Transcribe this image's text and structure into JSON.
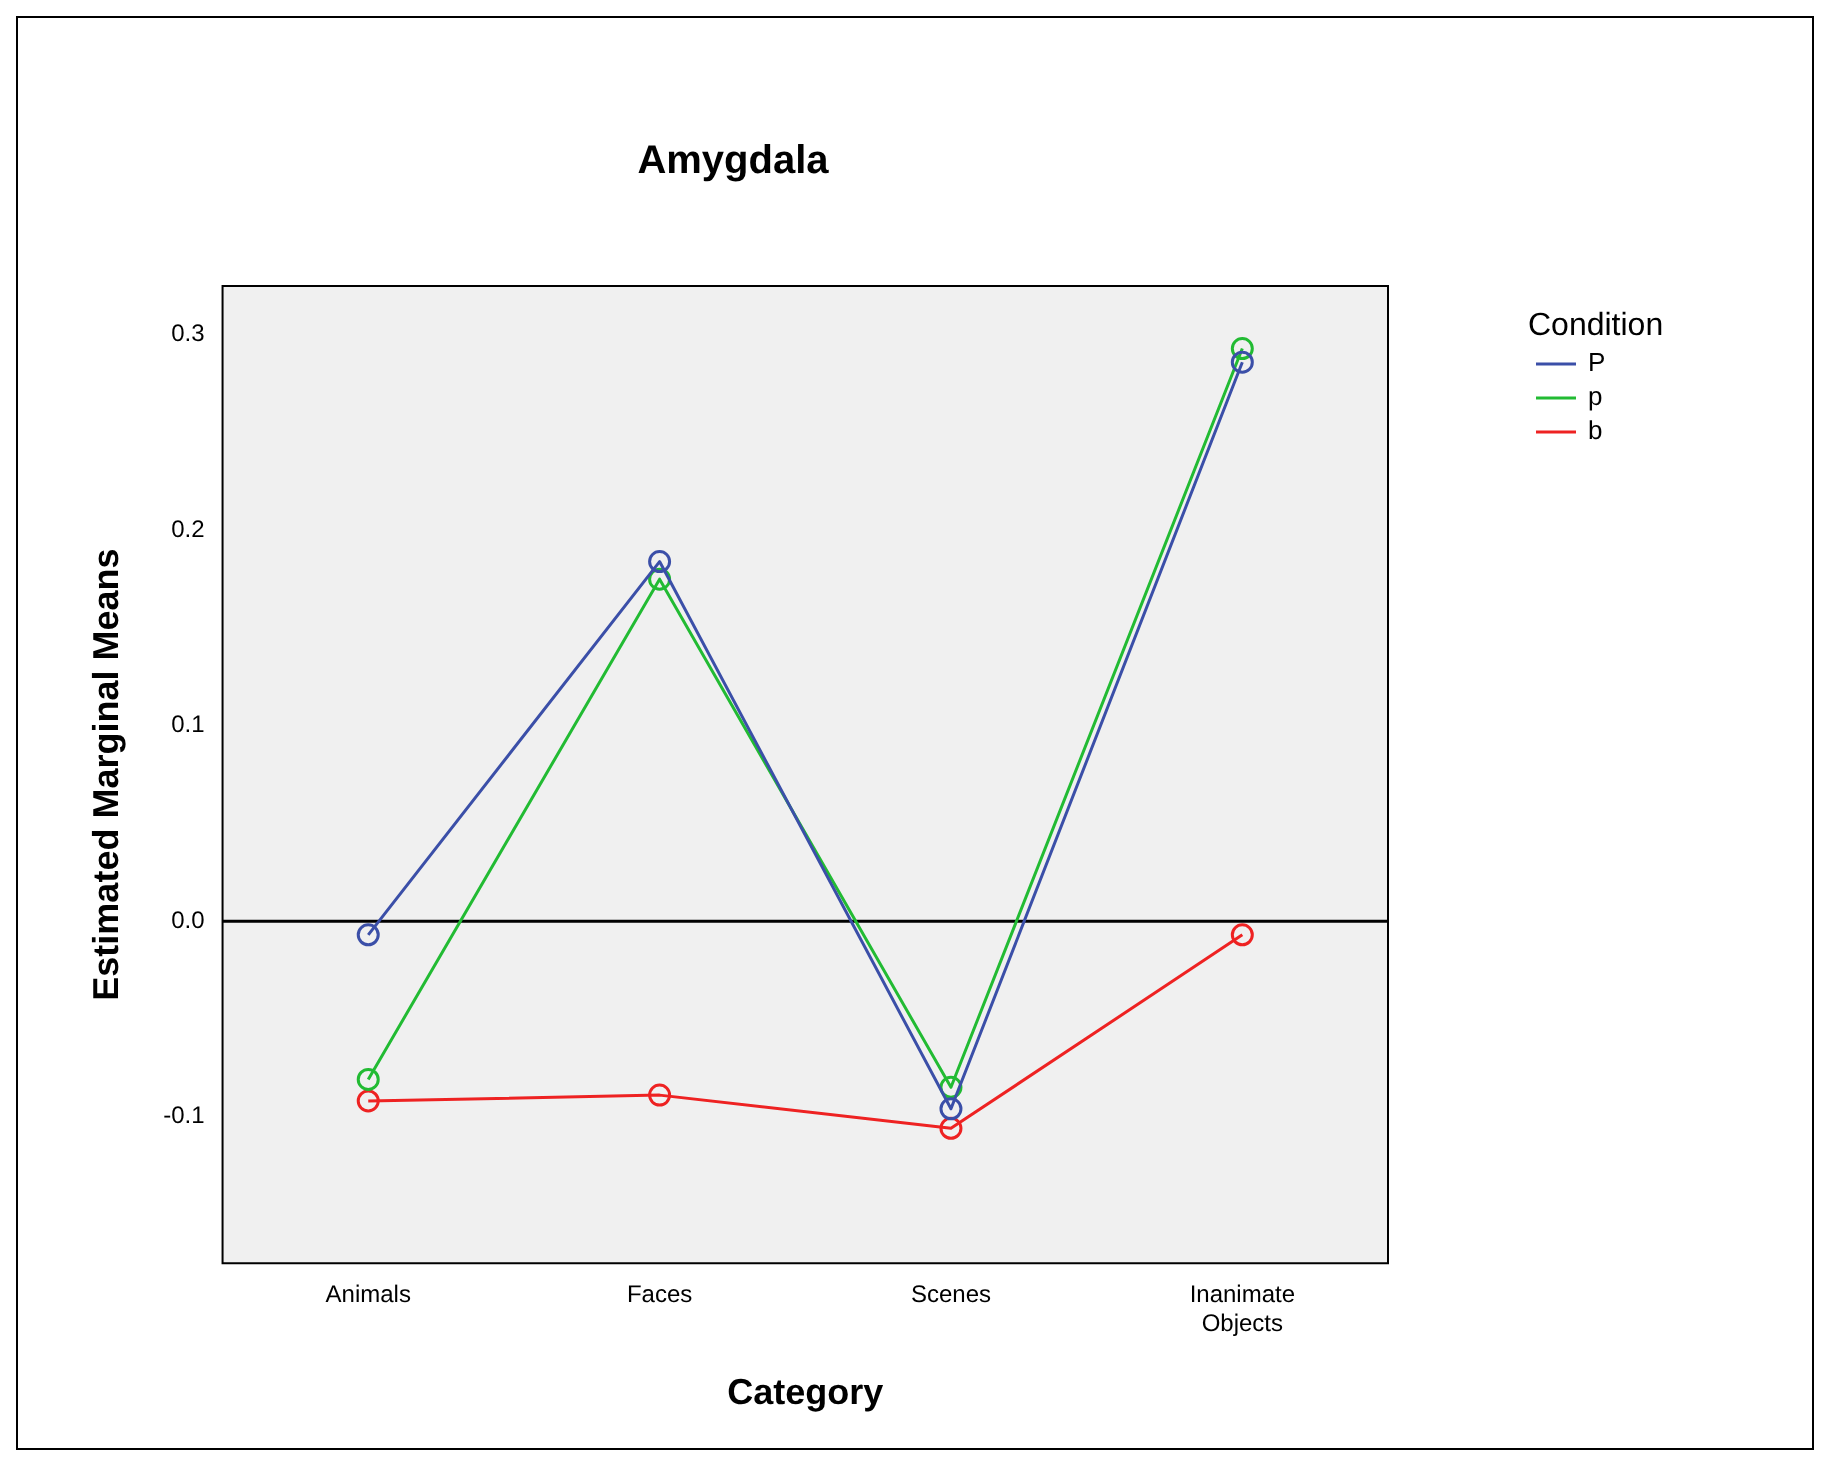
{
  "chart_data": {
    "type": "line",
    "title": "Amygdala",
    "xlabel": "Category",
    "ylabel": "Estimated Marginal Means",
    "legend_title": "Condition",
    "categories": [
      "Animals",
      "Faces",
      "Scenes",
      "Inanimate Objects"
    ],
    "series": [
      {
        "name": "P",
        "color": "#3b4fa8",
        "values": [
          -0.007,
          0.184,
          -0.096,
          0.286
        ]
      },
      {
        "name": "p",
        "color": "#22bb33",
        "values": [
          -0.081,
          0.175,
          -0.085,
          0.293
        ]
      },
      {
        "name": "b",
        "color": "#ee2222",
        "values": [
          -0.092,
          -0.089,
          -0.106,
          -0.007
        ]
      }
    ],
    "ylim": [
      -0.175,
      0.325
    ],
    "yticks": [
      {
        "value": -0.1,
        "label": "-0.1"
      },
      {
        "value": 0,
        "label": "0.0"
      },
      {
        "value": 0.1,
        "label": "0.1"
      },
      {
        "value": 0.2,
        "label": "0.2"
      },
      {
        "value": 0.3,
        "label": "0.3"
      }
    ],
    "ref_lines": [
      {
        "axis": "y",
        "value": 0,
        "color": "#000000"
      }
    ],
    "grid": false,
    "legend": "top right",
    "marker": "circle",
    "line_style": "solid"
  }
}
